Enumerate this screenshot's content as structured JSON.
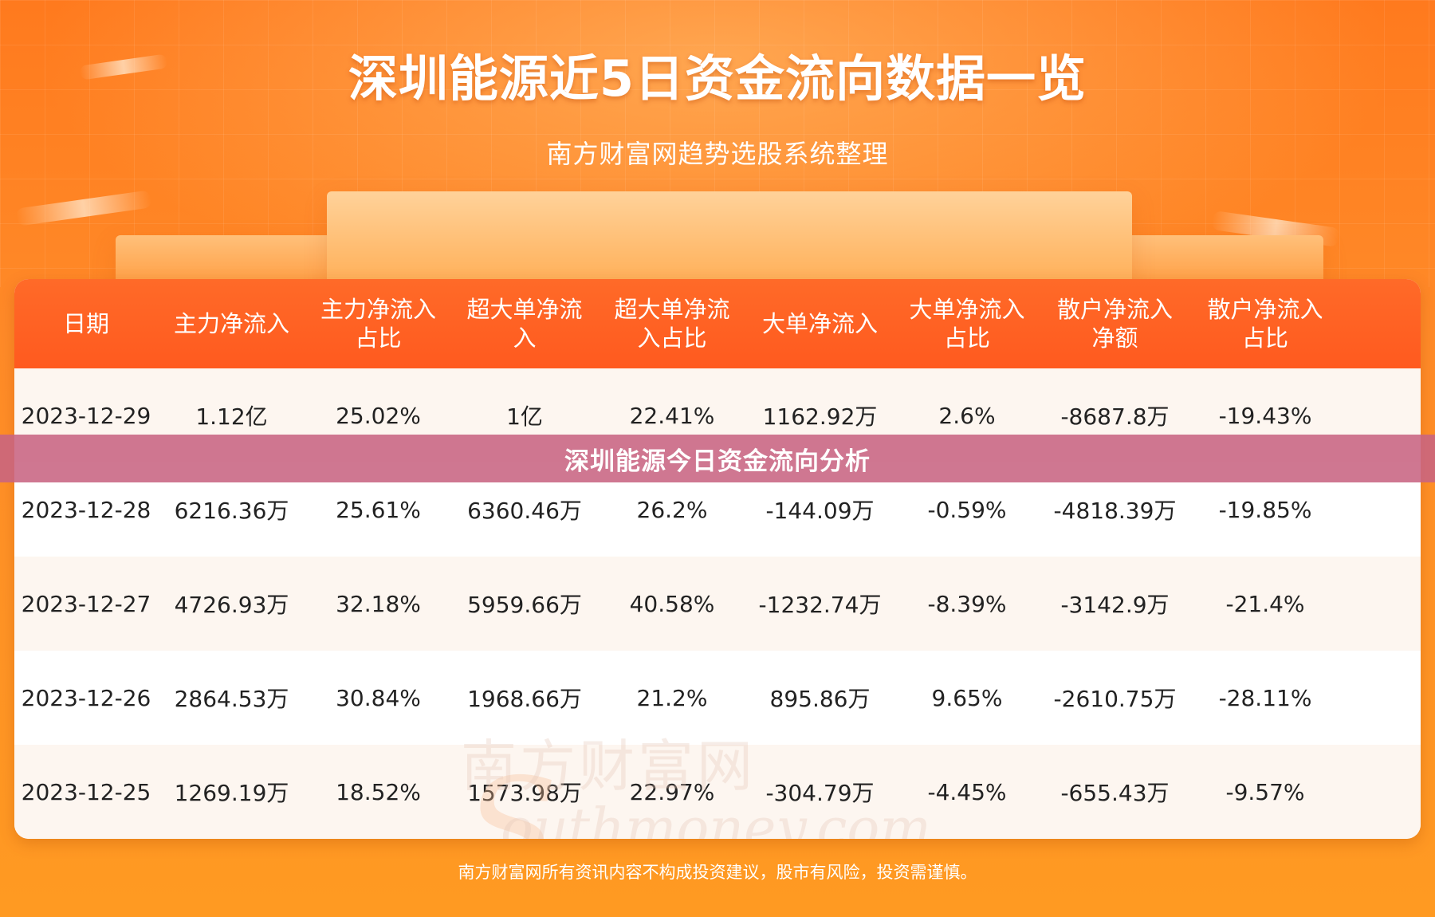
{
  "header": {
    "title": "深圳能源近5日资金流向数据一览",
    "subtitle": "南方财富网趋势选股系统整理"
  },
  "table": {
    "columns": [
      {
        "lines": [
          "日期"
        ]
      },
      {
        "lines": [
          "主力净流入"
        ]
      },
      {
        "lines": [
          "主力净流入",
          "占比"
        ]
      },
      {
        "lines": [
          "超大单净流",
          "入"
        ]
      },
      {
        "lines": [
          "超大单净流",
          "入占比"
        ]
      },
      {
        "lines": [
          "大单净流入"
        ]
      },
      {
        "lines": [
          "大单净流入",
          "占比"
        ]
      },
      {
        "lines": [
          "散户净流入",
          "净额"
        ]
      },
      {
        "lines": [
          "散户净流入",
          "占比"
        ]
      }
    ],
    "rows": [
      [
        "2023-12-29",
        "1.12亿",
        "25.02%",
        "1亿",
        "22.41%",
        "1162.92万",
        "2.6%",
        "-8687.8万",
        "-19.43%"
      ],
      [
        "2023-12-28",
        "6216.36万",
        "25.61%",
        "6360.46万",
        "26.2%",
        "-144.09万",
        "-0.59%",
        "-4818.39万",
        "-19.85%"
      ],
      [
        "2023-12-27",
        "4726.93万",
        "32.18%",
        "5959.66万",
        "40.58%",
        "-1232.74万",
        "-8.39%",
        "-3142.9万",
        "-21.4%"
      ],
      [
        "2023-12-26",
        "2864.53万",
        "30.84%",
        "1968.66万",
        "21.2%",
        "895.86万",
        "9.65%",
        "-2610.75万",
        "-28.11%"
      ],
      [
        "2023-12-25",
        "1269.19万",
        "18.52%",
        "1573.98万",
        "22.97%",
        "-304.79万",
        "-4.45%",
        "-655.43万",
        "-9.57%"
      ]
    ]
  },
  "watermark": {
    "line1": "南方财富网",
    "line2": "outhmoney.com",
    "initial": "S"
  },
  "banner": {
    "text": "深圳能源今日资金流向分析"
  },
  "footer": {
    "text": "南方财富网所有资讯内容不构成投资建议，股市有风险，投资需谨慎。"
  },
  "colors": {
    "background": "#ff8a28",
    "header_row": "#ff5f22",
    "banner": "#c8648a",
    "text_dark": "#222222",
    "text_light": "#ffffff"
  }
}
